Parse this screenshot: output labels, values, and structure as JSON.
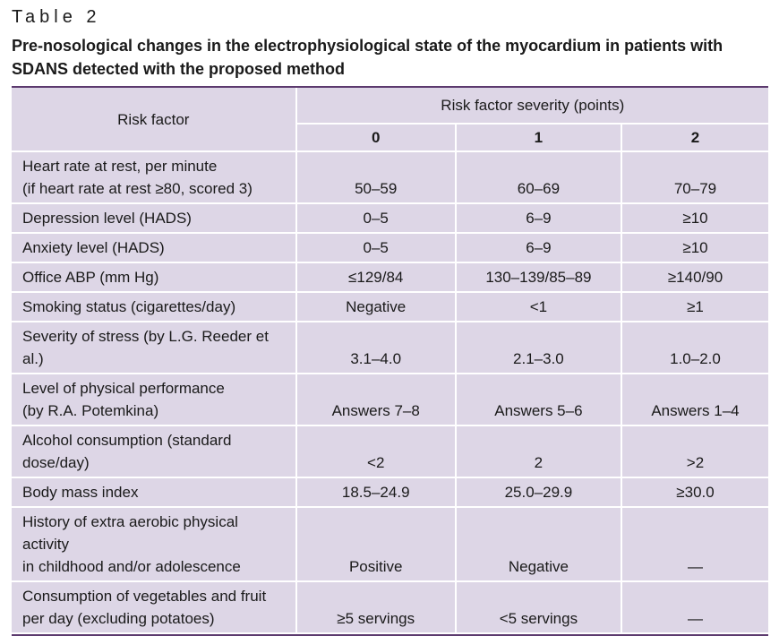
{
  "table_label": "Table 2",
  "caption": "Pre-nosological changes in the electrophysiological state of the myocardium in patients with SDANS detected with the proposed method",
  "header": {
    "risk_factor": "Risk factor",
    "severity": "Risk factor severity (points)",
    "points": [
      "0",
      "1",
      "2"
    ]
  },
  "rows": [
    {
      "factor": [
        "Heart rate at rest, per minute",
        "(if heart rate at rest ≥80, scored 3)"
      ],
      "values": [
        "50–59",
        "60–69",
        "70–79"
      ]
    },
    {
      "factor": [
        "Depression level (HADS)"
      ],
      "values": [
        "0–5",
        "6–9",
        "≥10"
      ]
    },
    {
      "factor": [
        "Anxiety level (HADS)"
      ],
      "values": [
        "0–5",
        "6–9",
        "≥10"
      ]
    },
    {
      "factor": [
        "Office ABP (mm Hg)"
      ],
      "values": [
        "≤129/84",
        "130–139/85–89",
        "≥140/90"
      ]
    },
    {
      "factor": [
        "Smoking status (cigarettes/day)"
      ],
      "values": [
        "Negative",
        "<1",
        "≥1"
      ]
    },
    {
      "factor": [
        "Severity of stress (by L.G. Reeder et al.)"
      ],
      "values": [
        "3.1–4.0",
        "2.1–3.0",
        "1.0–2.0"
      ]
    },
    {
      "factor": [
        "Level of physical performance",
        "(by R.A. Potemkina)"
      ],
      "values": [
        "Answers 7–8",
        "Answers 5–6",
        "Answers 1–4"
      ]
    },
    {
      "factor": [
        "Alcohol consumption (standard dose/day)"
      ],
      "values": [
        "<2",
        "2",
        ">2"
      ]
    },
    {
      "factor": [
        "Body mass index"
      ],
      "values": [
        "18.5–24.9",
        "25.0–29.9",
        "≥30.0"
      ]
    },
    {
      "factor": [
        "History of extra aerobic physical activity",
        "in childhood and/or adolescence"
      ],
      "values": [
        "Positive",
        "Negative",
        "—"
      ]
    },
    {
      "factor": [
        "Consumption of vegetables and fruit",
        "per day (excluding potatoes)"
      ],
      "values": [
        "≥5 servings",
        "<5 servings",
        "—"
      ]
    }
  ]
}
